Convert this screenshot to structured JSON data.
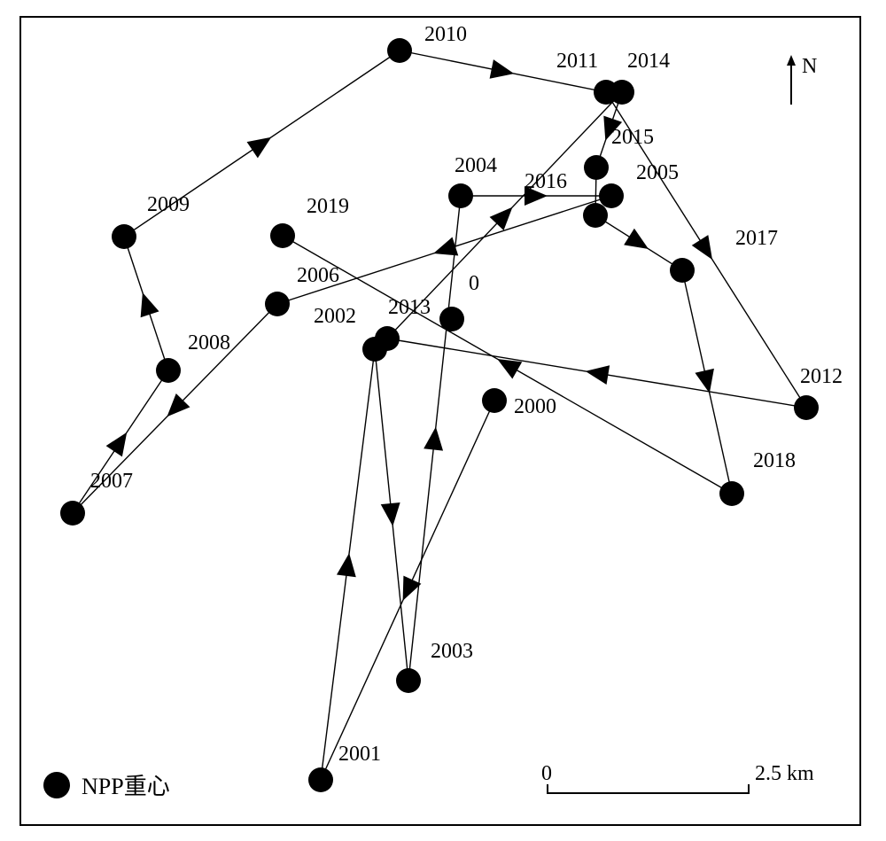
{
  "legend": {
    "label": "NPP重心",
    "marker_color": "#000000"
  },
  "north_arrow": {
    "label": "N"
  },
  "scale_bar": {
    "start_label": "0",
    "end_label": "2.5 km"
  },
  "points": [
    {
      "id": "2000",
      "label": "2000"
    },
    {
      "id": "2001",
      "label": "2001"
    },
    {
      "id": "2002",
      "label": "2002"
    },
    {
      "id": "2003",
      "label": "2003"
    },
    {
      "id": "2004",
      "label": "2004"
    },
    {
      "id": "2005",
      "label": "2005"
    },
    {
      "id": "2006",
      "label": "2006"
    },
    {
      "id": "2007",
      "label": "2007"
    },
    {
      "id": "2008",
      "label": "2008"
    },
    {
      "id": "2009",
      "label": "2009"
    },
    {
      "id": "2010",
      "label": "2010"
    },
    {
      "id": "2011",
      "label": "2011"
    },
    {
      "id": "2012",
      "label": "2012"
    },
    {
      "id": "2013",
      "label": "2013"
    },
    {
      "id": "2014",
      "label": "2014"
    },
    {
      "id": "2015",
      "label": "2015"
    },
    {
      "id": "2016",
      "label": "2016"
    },
    {
      "id": "2017",
      "label": "2017"
    },
    {
      "id": "2018",
      "label": "2018"
    },
    {
      "id": "2019",
      "label": "2019"
    },
    {
      "id": "0",
      "label": "0"
    }
  ],
  "path_order": [
    "2000",
    "2001",
    "2002",
    "2003",
    "2004",
    "2005",
    "2006",
    "2007",
    "2008",
    "2009",
    "2010",
    "2011",
    "2012",
    "2013",
    "2014",
    "2015",
    "2016",
    "2017",
    "2018",
    "2019"
  ]
}
